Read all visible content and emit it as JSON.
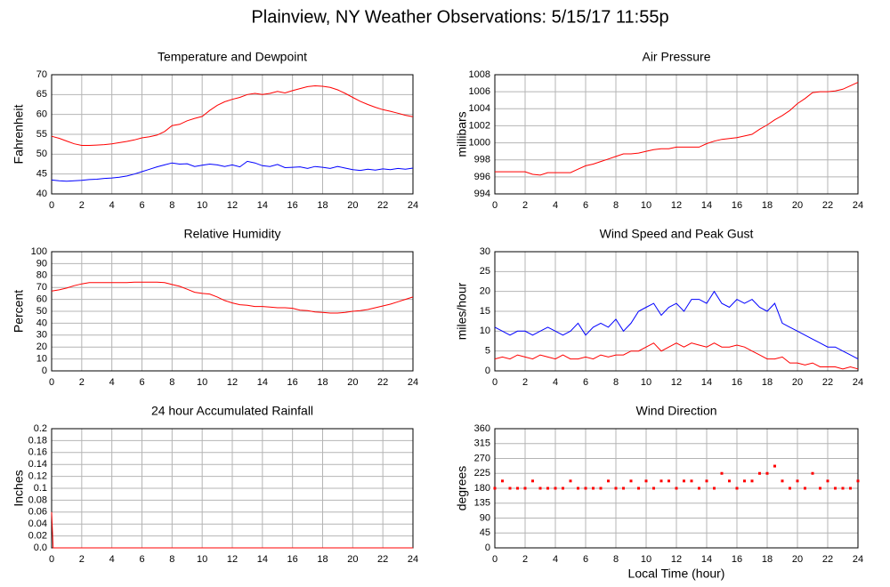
{
  "title": "Plainview, NY Weather Observations: 5/15/17 11:55p",
  "chart_data": [
    {
      "type": "line",
      "title": "Temperature and Dewpoint",
      "ylabel": "Fahrenheit",
      "x": [
        0,
        0.5,
        1,
        1.5,
        2,
        2.5,
        3,
        3.5,
        4,
        4.5,
        5,
        5.5,
        6,
        6.5,
        7,
        7.5,
        8,
        8.5,
        9,
        9.5,
        10,
        10.5,
        11,
        11.5,
        12,
        12.5,
        13,
        13.5,
        14,
        14.5,
        15,
        15.5,
        16,
        16.5,
        17,
        17.5,
        18,
        18.5,
        19,
        19.5,
        20,
        20.5,
        21,
        21.5,
        22,
        22.5,
        23,
        23.5,
        24
      ],
      "series": [
        {
          "color": "#ff0000",
          "values": [
            54.5,
            54,
            53.3,
            52.6,
            52.2,
            52.2,
            52.3,
            52.4,
            52.6,
            52.9,
            53.2,
            53.6,
            54.1,
            54.4,
            54.8,
            55.7,
            57.2,
            57.5,
            58.4,
            59,
            59.5,
            61,
            62.3,
            63.2,
            63.8,
            64.3,
            65,
            65.3,
            65,
            65.3,
            65.8,
            65.4,
            66,
            66.5,
            67,
            67.2,
            67.1,
            66.8,
            66.2,
            65.3,
            64.3,
            63.3,
            62.5,
            61.8,
            61.2,
            60.8,
            60.3,
            59.8,
            59.4
          ]
        },
        {
          "color": "#0000ff",
          "values": [
            43.5,
            43.3,
            43.2,
            43.3,
            43.4,
            43.6,
            43.7,
            43.9,
            44,
            44.2,
            44.5,
            45,
            45.6,
            46.2,
            46.8,
            47.3,
            47.8,
            47.5,
            47.6,
            46.9,
            47.2,
            47.5,
            47.3,
            46.9,
            47.3,
            46.8,
            48.2,
            47.8,
            47.1,
            46.9,
            47.4,
            46.6,
            46.7,
            46.8,
            46.4,
            46.9,
            46.7,
            46.4,
            46.9,
            46.5,
            46.1,
            45.9,
            46.2,
            46,
            46.3,
            46.1,
            46.4,
            46.2,
            46.5
          ]
        }
      ],
      "xlim": [
        0,
        24
      ],
      "xticks": [
        0,
        2,
        4,
        6,
        8,
        10,
        12,
        14,
        16,
        18,
        20,
        22,
        24
      ],
      "ylim": [
        40,
        70
      ],
      "yticks": [
        40,
        45,
        50,
        55,
        60,
        65,
        70
      ],
      "grid": true
    },
    {
      "type": "line",
      "title": "Air Pressure",
      "ylabel": "millibars",
      "x": [
        0,
        0.5,
        1,
        1.5,
        2,
        2.5,
        3,
        3.5,
        4,
        4.5,
        5,
        5.5,
        6,
        6.5,
        7,
        7.5,
        8,
        8.5,
        9,
        9.5,
        10,
        10.5,
        11,
        11.5,
        12,
        12.5,
        13,
        13.5,
        14,
        14.5,
        15,
        15.5,
        16,
        16.5,
        17,
        17.5,
        18,
        18.5,
        19,
        19.5,
        20,
        20.5,
        21,
        21.5,
        22,
        22.5,
        23,
        23.5,
        24
      ],
      "series": [
        {
          "color": "#ff0000",
          "values": [
            996.6,
            996.6,
            996.6,
            996.6,
            996.6,
            996.3,
            996.2,
            996.5,
            996.5,
            996.5,
            996.5,
            996.9,
            997.3,
            997.5,
            997.8,
            998.1,
            998.4,
            998.7,
            998.7,
            998.8,
            999,
            999.2,
            999.3,
            999.3,
            999.5,
            999.5,
            999.5,
            999.5,
            999.9,
            1000.2,
            1000.4,
            1000.5,
            1000.6,
            1000.8,
            1001,
            1001.6,
            1002.1,
            1002.7,
            1003.2,
            1003.8,
            1004.6,
            1005.2,
            1005.9,
            1006,
            1006,
            1006.1,
            1006.3,
            1006.7,
            1007.1
          ]
        }
      ],
      "xlim": [
        0,
        24
      ],
      "xticks": [
        0,
        2,
        4,
        6,
        8,
        10,
        12,
        14,
        16,
        18,
        20,
        22,
        24
      ],
      "ylim": [
        994,
        1008
      ],
      "yticks": [
        994,
        996,
        998,
        1000,
        1002,
        1004,
        1006,
        1008
      ],
      "grid": true
    },
    {
      "type": "line",
      "title": "Relative Humidity",
      "ylabel": "Percent",
      "x": [
        0,
        0.5,
        1,
        1.5,
        2,
        2.5,
        3,
        3.5,
        4,
        4.5,
        5,
        5.5,
        6,
        6.5,
        7,
        7.5,
        8,
        8.5,
        9,
        9.5,
        10,
        10.5,
        11,
        11.5,
        12,
        12.5,
        13,
        13.5,
        14,
        14.5,
        15,
        15.5,
        16,
        16.5,
        17,
        17.5,
        18,
        18.5,
        19,
        19.5,
        20,
        20.5,
        21,
        21.5,
        22,
        22.5,
        23,
        23.5,
        24
      ],
      "series": [
        {
          "color": "#ff0000",
          "values": [
            67,
            68,
            69.5,
            71.5,
            73,
            74,
            74,
            74,
            74,
            74,
            74,
            74.5,
            74.5,
            74.5,
            74.5,
            74,
            72.5,
            71,
            68.5,
            66,
            65,
            64.5,
            62,
            59,
            57,
            55.5,
            55,
            54,
            54,
            53.5,
            53,
            53,
            52.5,
            51,
            50.5,
            49.5,
            49,
            48.5,
            48.5,
            49,
            50,
            50.5,
            51.5,
            53,
            54.5,
            56,
            58,
            60,
            62
          ]
        }
      ],
      "xlim": [
        0,
        24
      ],
      "xticks": [
        0,
        2,
        4,
        6,
        8,
        10,
        12,
        14,
        16,
        18,
        20,
        22,
        24
      ],
      "ylim": [
        0,
        100
      ],
      "yticks": [
        0,
        10,
        20,
        30,
        40,
        50,
        60,
        70,
        80,
        90,
        100
      ],
      "grid": true
    },
    {
      "type": "line",
      "title": "Wind Speed and Peak Gust",
      "ylabel": "miles/hour",
      "x": [
        0,
        0.5,
        1,
        1.5,
        2,
        2.5,
        3,
        3.5,
        4,
        4.5,
        5,
        5.5,
        6,
        6.5,
        7,
        7.5,
        8,
        8.5,
        9,
        9.5,
        10,
        10.5,
        11,
        11.5,
        12,
        12.5,
        13,
        13.5,
        14,
        14.5,
        15,
        15.5,
        16,
        16.5,
        17,
        17.5,
        18,
        18.5,
        19,
        19.5,
        20,
        20.5,
        21,
        21.5,
        22,
        22.5,
        23,
        23.5,
        24
      ],
      "series": [
        {
          "color": "#0000ff",
          "values": [
            11,
            10,
            9,
            10,
            10,
            9,
            10,
            11,
            10,
            9,
            10,
            12,
            9,
            11,
            12,
            11,
            13,
            10,
            12,
            15,
            16,
            17,
            14,
            16,
            17,
            15,
            18,
            18,
            17,
            20,
            17,
            16,
            18,
            17,
            18,
            16,
            15,
            17,
            12,
            11,
            10,
            9,
            8,
            7,
            6,
            6,
            5,
            4,
            3
          ]
        },
        {
          "color": "#ff0000",
          "values": [
            3,
            3.5,
            3,
            4,
            3.5,
            3,
            4,
            3.5,
            3,
            4,
            3,
            3,
            3.5,
            3,
            4,
            3.5,
            4,
            4,
            5,
            5,
            6,
            7,
            5,
            6,
            7,
            6,
            7,
            6.5,
            6,
            7,
            6,
            6,
            6.5,
            6,
            5,
            4,
            3,
            3,
            3.5,
            2,
            2,
            1.5,
            2,
            1,
            1,
            1,
            0.5,
            1,
            0.5
          ]
        }
      ],
      "xlim": [
        0,
        24
      ],
      "xticks": [
        0,
        2,
        4,
        6,
        8,
        10,
        12,
        14,
        16,
        18,
        20,
        22,
        24
      ],
      "ylim": [
        0,
        30
      ],
      "yticks": [
        0,
        5,
        10,
        15,
        20,
        25,
        30
      ],
      "grid": true
    },
    {
      "type": "line",
      "title": "24 hour Accumulated Rainfall",
      "ylabel": "Inches",
      "x": [
        0,
        0.1,
        24
      ],
      "series": [
        {
          "color": "#ff0000",
          "values": [
            0.06,
            0,
            0
          ]
        }
      ],
      "xlim": [
        0,
        24
      ],
      "xticks": [
        0,
        2,
        4,
        6,
        8,
        10,
        12,
        14,
        16,
        18,
        20,
        22,
        24
      ],
      "ylim": [
        0,
        0.2
      ],
      "yticks": [
        {
          "value": 0,
          "label": "0.0"
        },
        0.02,
        0.04,
        0.06,
        0.08,
        0.1,
        0.12,
        0.14,
        0.16,
        0.18,
        0.2
      ],
      "grid": true
    },
    {
      "type": "scatter",
      "title": "Wind Direction",
      "ylabel": "degrees",
      "xlabel": "Local Time (hour)",
      "x": [
        0,
        0.5,
        1,
        1.5,
        2,
        2.5,
        3,
        3.5,
        4,
        4.5,
        5,
        5.5,
        6,
        6.5,
        7,
        7.5,
        8,
        8.5,
        9,
        9.5,
        10,
        10.5,
        11,
        11.5,
        12,
        12.5,
        13,
        13.5,
        14,
        14.5,
        15,
        15.5,
        16,
        16.5,
        17,
        17.5,
        18,
        18.5,
        19,
        19.5,
        20,
        20.5,
        21,
        21.5,
        22,
        22.5,
        23,
        23.5,
        24
      ],
      "series": [
        {
          "color": "#ff0000",
          "values": [
            180,
            202,
            180,
            180,
            180,
            202,
            180,
            180,
            180,
            180,
            202,
            180,
            180,
            180,
            180,
            202,
            180,
            180,
            202,
            180,
            202,
            180,
            202,
            202,
            180,
            202,
            202,
            180,
            202,
            180,
            225,
            202,
            180,
            202,
            202,
            225,
            225,
            247,
            202,
            180,
            202,
            180,
            225,
            180,
            202,
            180,
            180,
            180,
            202
          ]
        }
      ],
      "xlim": [
        0,
        24
      ],
      "xticks": [
        0,
        2,
        4,
        6,
        8,
        10,
        12,
        14,
        16,
        18,
        20,
        22,
        24
      ],
      "ylim": [
        0,
        360
      ],
      "yticks": [
        0,
        45,
        90,
        135,
        180,
        225,
        270,
        315,
        360
      ],
      "grid": true
    }
  ]
}
